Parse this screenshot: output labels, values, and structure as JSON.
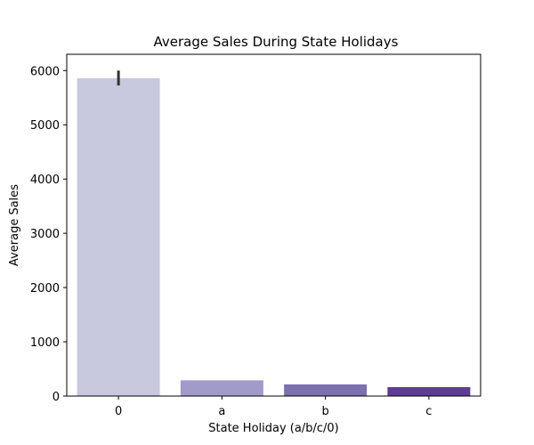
{
  "chart_data": {
    "type": "bar",
    "title": "Average Sales During State Holidays",
    "xlabel": "State Holiday (a/b/c/0)",
    "ylabel": "Average Sales",
    "categories": [
      "0",
      "a",
      "b",
      "c"
    ],
    "values": [
      5860,
      290,
      215,
      165
    ],
    "error_bars": [
      [
        5725,
        6000
      ],
      null,
      null,
      null
    ],
    "colors": [
      "#c8c9df",
      "#a09bc8",
      "#7d70ae",
      "#5e3c95"
    ],
    "error_color": "#333333",
    "ylim": [
      0,
      6300
    ],
    "yticks": [
      0,
      1000,
      2000,
      3000,
      4000,
      5000,
      6000
    ],
    "grid": false
  }
}
